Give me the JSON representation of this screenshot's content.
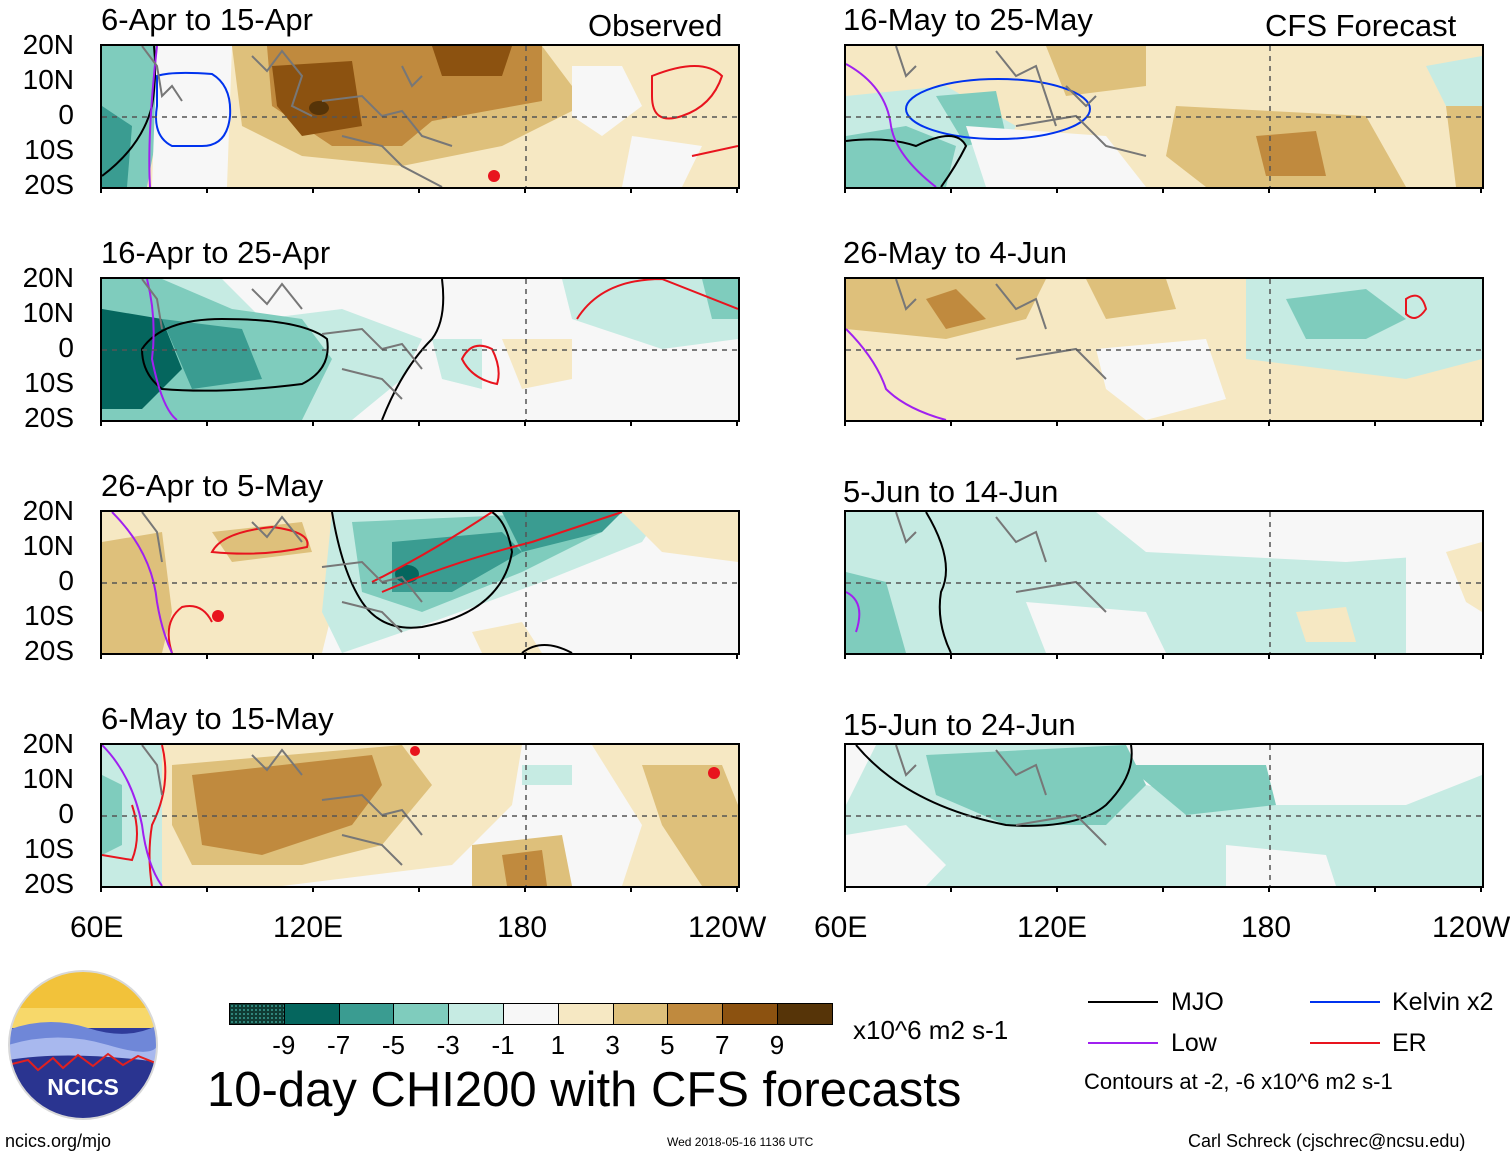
{
  "left_header": "Observed",
  "right_header": "CFS Forecast",
  "latitude_labels": [
    "20N",
    "10N",
    "0",
    "10S",
    "20S"
  ],
  "longitude_labels": [
    "60E",
    "120E",
    "180",
    "120W"
  ],
  "panels": [
    {
      "title": "6-Apr to 15-Apr",
      "kind": "observed"
    },
    {
      "title": "16-Apr to 25-Apr",
      "kind": "observed"
    },
    {
      "title": "26-Apr to 5-May",
      "kind": "observed"
    },
    {
      "title": "6-May to 15-May",
      "kind": "observed"
    },
    {
      "title": "16-May to 25-May",
      "kind": "forecast"
    },
    {
      "title": "26-May to 4-Jun",
      "kind": "forecast"
    },
    {
      "title": "5-Jun to 14-Jun",
      "kind": "forecast"
    },
    {
      "title": "15-Jun to 24-Jun",
      "kind": "forecast"
    }
  ],
  "colorbar": {
    "labels": [
      "-9",
      "-7",
      "-5",
      "-3",
      "-1",
      "1",
      "3",
      "5",
      "7",
      "9"
    ],
    "units": "x10^6 m2 s-1",
    "colors": [
      "#0f3b33",
      "#05665e",
      "#3a9c91",
      "#7fccbd",
      "#c6ebe3",
      "#f7f7f7",
      "#f6e8c3",
      "#dec07b",
      "#c08a3e",
      "#8c5210",
      "#563408"
    ]
  },
  "legend": {
    "items": [
      {
        "label": "MJO",
        "color": "#000000"
      },
      {
        "label": "Kelvin x2",
        "color": "#0033ee"
      },
      {
        "label": "Low",
        "color": "#a020f0"
      },
      {
        "label": "ER",
        "color": "#e8141e"
      }
    ],
    "note": "Contours at -2, -6 x10^6 m2 s-1"
  },
  "main_title": "10-day CHI200 with CFS forecasts",
  "logo_text": "NCICS",
  "footer": {
    "url": "ncics.org/mjo",
    "timestamp": "Wed 2018-05-16 1136 UTC",
    "credit": "Carl Schreck (cjschrec@ncsu.edu)"
  }
}
